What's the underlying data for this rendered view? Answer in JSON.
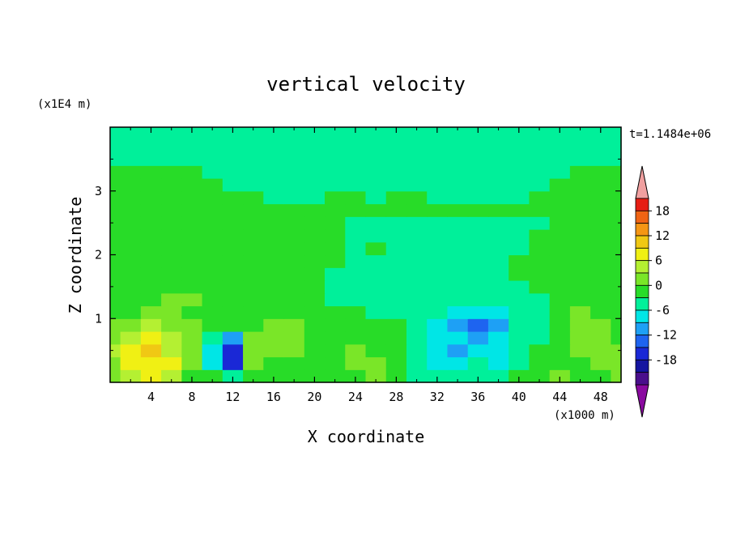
{
  "chart_data": {
    "type": "heatmap",
    "title": "vertical velocity",
    "xlabel": "X coordinate",
    "ylabel": "Z coordinate",
    "x_unit": "(x1000 m)",
    "y_unit": "(x1E4 m)",
    "time_label": "t=1.1484e+06",
    "xlim": [
      0,
      50
    ],
    "ylim": [
      0,
      4
    ],
    "x_ticks": [
      4,
      8,
      12,
      16,
      20,
      24,
      28,
      32,
      36,
      40,
      44,
      48
    ],
    "y_ticks": [
      1,
      2,
      3
    ],
    "colorbar": {
      "levels": [
        -21,
        -18,
        -15,
        -12,
        -9,
        -6,
        -3,
        0,
        3,
        6,
        9,
        12,
        15,
        18,
        21
      ],
      "tick_labels": [
        "18",
        "12",
        "6",
        "0",
        "-6",
        "-12",
        "-18"
      ],
      "tick_values": [
        18,
        12,
        6,
        0,
        -6,
        -12,
        -18
      ],
      "colors": [
        "#8a0aa0",
        "#4a0f8c",
        "#1515a0",
        "#1a28d6",
        "#1e64f0",
        "#1ea0f5",
        "#00e6e6",
        "#00f09a",
        "#28dc28",
        "#7ae628",
        "#b4f032",
        "#f0f014",
        "#f0c814",
        "#f59614",
        "#f06414",
        "#e61e14",
        "#f0a0a0"
      ]
    },
    "field": {
      "grid_x": [
        0,
        2,
        4,
        6,
        8,
        10,
        12,
        14,
        16,
        18,
        20,
        22,
        24,
        26,
        28,
        30,
        32,
        34,
        36,
        38,
        40,
        42,
        44,
        46,
        48,
        50
      ],
      "grid_z": [
        0.1,
        0.3,
        0.5,
        0.7,
        0.9,
        1.1,
        1.3,
        1.5,
        1.7,
        1.9,
        2.1,
        2.3,
        2.5,
        2.7,
        2.9,
        3.1,
        3.3,
        3.5,
        3.7,
        3.9
      ],
      "values": [
        [
          3,
          7,
          9,
          6,
          2,
          0,
          -2,
          2,
          0,
          1,
          0,
          0,
          2,
          3,
          0,
          -2,
          -3,
          -3,
          -2,
          -2,
          0,
          0,
          3,
          2,
          2,
          4
        ],
        [
          5,
          9,
          11,
          9,
          3,
          -4,
          -13,
          3,
          2,
          1,
          0,
          0,
          3,
          3,
          0,
          -3,
          -5,
          -6,
          -3,
          -4,
          -2,
          0,
          2,
          1,
          3,
          5
        ],
        [
          6,
          10,
          12,
          8,
          4,
          -6,
          -14,
          4,
          5,
          3,
          1,
          1,
          3,
          2,
          0,
          -3,
          -5,
          -7,
          -5,
          -5,
          -3,
          0,
          1,
          3,
          4,
          5
        ],
        [
          5,
          8,
          10,
          7,
          4,
          -3,
          -8,
          3,
          5,
          3,
          1,
          1,
          2,
          1,
          0,
          -3,
          -4,
          -6,
          -9,
          -6,
          -2,
          -2,
          1,
          4,
          3,
          2
        ],
        [
          3,
          4,
          6,
          5,
          3,
          1,
          0,
          2,
          3,
          3,
          1,
          0,
          0,
          0,
          0,
          -2,
          -4,
          -7,
          -11,
          -7,
          -3,
          -1,
          1,
          5,
          3,
          1
        ],
        [
          1,
          2,
          3,
          3,
          2,
          1,
          1,
          1,
          2,
          2,
          0,
          0,
          0,
          -1,
          -1,
          -2,
          -3,
          -4,
          -6,
          -5,
          -3,
          -1,
          1,
          3,
          2,
          1
        ],
        [
          1,
          1,
          2,
          3,
          3,
          2,
          1,
          1,
          1,
          1,
          0,
          -1,
          -1,
          -1,
          -1,
          -1,
          -2,
          -3,
          -3,
          -3,
          -2,
          -1,
          0,
          1,
          1,
          1
        ],
        [
          1,
          1,
          1,
          2,
          2,
          1,
          1,
          1,
          1,
          1,
          1,
          -1,
          -1,
          -1,
          -1,
          -1,
          -1,
          -2,
          -2,
          -2,
          -1,
          0,
          0,
          1,
          1,
          1
        ],
        [
          1,
          1,
          1,
          1,
          1,
          1,
          1,
          1,
          1,
          1,
          1,
          -1,
          -1,
          -1,
          -1,
          -1,
          -1,
          -1,
          -1,
          -1,
          0,
          0,
          1,
          1,
          1,
          1
        ],
        [
          1,
          1,
          1,
          1,
          1,
          1,
          1,
          1,
          1,
          1,
          1,
          0,
          -1,
          -1,
          -1,
          -1,
          -1,
          -1,
          -1,
          -1,
          0,
          0,
          1,
          1,
          1,
          1
        ],
        [
          1,
          1,
          1,
          1,
          1,
          1,
          1,
          1,
          1,
          1,
          1,
          0,
          -1,
          1,
          -1,
          -1,
          -1,
          -1,
          -1,
          -1,
          -1,
          0,
          1,
          1,
          1,
          1
        ],
        [
          1,
          1,
          1,
          1,
          1,
          1,
          1,
          1,
          1,
          1,
          1,
          0,
          -1,
          -1,
          -1,
          -1,
          -1,
          -1,
          -1,
          -1,
          -1,
          0,
          1,
          1,
          1,
          1
        ],
        [
          1,
          1,
          1,
          1,
          1,
          1,
          1,
          1,
          1,
          1,
          0,
          0,
          -1,
          -1,
          -1,
          -1,
          -1,
          -1,
          -1,
          -1,
          -1,
          -1,
          0,
          1,
          1,
          1
        ],
        [
          1,
          1,
          1,
          1,
          1,
          1,
          1,
          1,
          1,
          1,
          1,
          1,
          1,
          1,
          1,
          1,
          1,
          1,
          1,
          1,
          1,
          1,
          1,
          1,
          1,
          1
        ],
        [
          1,
          1,
          1,
          1,
          1,
          1,
          1,
          1,
          -1,
          -1,
          -1,
          1,
          1,
          -1,
          1,
          1,
          -1,
          -1,
          -1,
          -1,
          -1,
          1,
          1,
          1,
          1,
          1
        ],
        [
          1,
          1,
          1,
          1,
          1,
          1,
          -1,
          -1,
          -1,
          -1,
          -1,
          -1,
          -1,
          -1,
          -1,
          -1,
          -1,
          -1,
          -1,
          -1,
          -1,
          -1,
          1,
          1,
          1,
          1
        ],
        [
          1,
          1,
          1,
          1,
          1,
          -1,
          -1,
          -1,
          -1,
          -1,
          -1,
          -1,
          -1,
          -1,
          -1,
          -1,
          -1,
          -1,
          -1,
          -1,
          -1,
          -1,
          -1,
          1,
          1,
          1
        ],
        [
          -1,
          -1,
          -1,
          -1,
          -1,
          -1,
          -1,
          -1,
          -1,
          -1,
          -1,
          -1,
          -1,
          -1,
          -1,
          -1,
          -1,
          -1,
          -1,
          -1,
          -1,
          -1,
          -1,
          -1,
          -1,
          -1
        ],
        [
          -1,
          -1,
          -1,
          -1,
          -1,
          -1,
          -1,
          -1,
          -1,
          -1,
          -1,
          -1,
          -1,
          -1,
          -1,
          -1,
          -1,
          -1,
          -1,
          -1,
          -1,
          -1,
          -1,
          -1,
          -1,
          -1
        ],
        [
          -1,
          -1,
          -1,
          -1,
          -1,
          -1,
          -1,
          -1,
          -1,
          -1,
          -1,
          -1,
          -1,
          -1,
          -1,
          -1,
          -1,
          -1,
          -1,
          -1,
          -1,
          -1,
          -1,
          -1,
          -1,
          -1
        ]
      ]
    }
  }
}
